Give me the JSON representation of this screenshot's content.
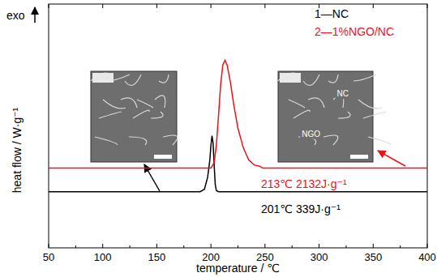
{
  "chart_data": {
    "type": "line",
    "x_label": "temperature / ℃",
    "y_label": "heat flow / W·g⁻¹",
    "y_direction_label": "exo",
    "xlim": [
      50,
      400
    ],
    "xticks": [
      50,
      100,
      150,
      200,
      250,
      300,
      350,
      400
    ],
    "ylim": [
      0,
      10
    ],
    "tick_labels": "x",
    "grid": false,
    "legend": "top-right",
    "series": [
      {
        "name": "1—NC",
        "color": "#000000",
        "x": [
          50,
          190,
          194,
          197,
          199,
          200,
          201,
          202,
          203,
          204,
          205,
          207,
          400
        ],
        "values": [
          2.3,
          2.3,
          2.4,
          2.9,
          3.6,
          4.2,
          4.6,
          4.3,
          3.4,
          2.6,
          2.35,
          2.3,
          2.3
        ]
      },
      {
        "name": "2—1%NGO/NC",
        "color": "#e8141b",
        "x": [
          50,
          200,
          203,
          205,
          207,
          209,
          211,
          213,
          215,
          218,
          221,
          225,
          230,
          235,
          240,
          245,
          248,
          400
        ],
        "values": [
          3.27,
          3.27,
          3.5,
          4.2,
          5.4,
          6.7,
          7.5,
          7.7,
          7.5,
          6.8,
          5.9,
          4.9,
          4.1,
          3.6,
          3.4,
          3.35,
          3.27,
          3.27
        ]
      }
    ],
    "annotations": [
      {
        "text": "213℃  2132J·g⁻¹",
        "color": "#e8141b"
      },
      {
        "text": "201℃  339J·g⁻¹",
        "color": "#000000"
      }
    ],
    "inset_labels": [
      "NC",
      "NGO"
    ]
  }
}
